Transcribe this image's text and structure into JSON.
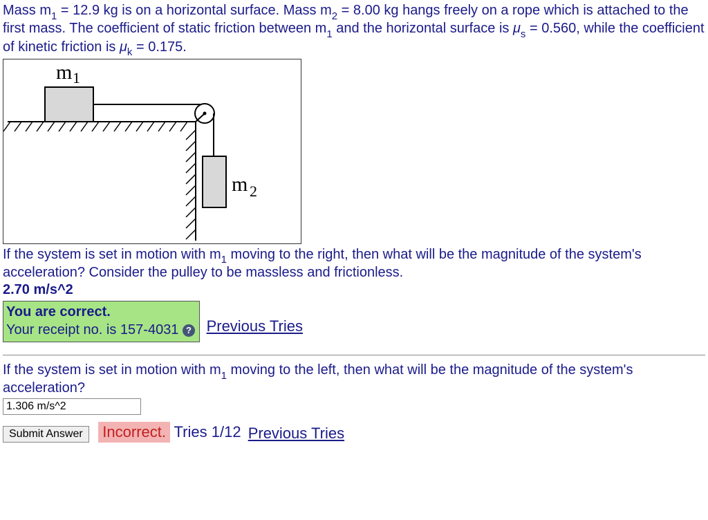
{
  "problem": {
    "text_html": "Mass m<span class='sub'>1</span> = 12.9 kg is on a horizontal surface. Mass m<span class='sub'>2</span> = 8.00 kg hangs freely on a rope which is attached to the first mass. The coefficient of static friction between m<span class='sub'>1</span> and the horizontal surface is <span class='ital'>μ</span><span class='sub'>s</span> = 0.560, while the coefficient of kinetic friction is <span class='ital'>μ</span><span class='sub'>k</span> = 0.175."
  },
  "diagram": {
    "m1_label": "m",
    "m1_sub": "1",
    "m2_label": "m",
    "m2_sub": "2",
    "box_fill": "#d8d8d8",
    "box_stroke": "#000000",
    "hatch_color": "#000000",
    "rope_color": "#000000",
    "pulley_stroke": "#000000",
    "pulley_fill": "#ffffff"
  },
  "q1": {
    "prompt_html": "If the system is set in motion with m<span class='sub'>1</span> moving to the right, then what will be the magnitude of the system's acceleration? Consider the pulley to be massless and frictionless.",
    "answer": "2.70 m/s^2",
    "feedback_line1": "You are correct.",
    "feedback_line2": "Your receipt no. is 157-4031",
    "previous_tries": "Previous Tries",
    "feedback_bg": "#a6e485"
  },
  "q2": {
    "prompt_html": "If the system is set in motion with m<span class='sub'>1</span> moving to the left, then what will be the magnitude of the system's acceleration?",
    "input_value": "1.306 m/s^2",
    "submit_label": "Submit Answer",
    "incorrect_label": "Incorrect.",
    "tries_text": "Tries 1/12",
    "previous_tries": "Previous Tries",
    "incorrect_bg": "#f4b3b3",
    "incorrect_color": "#c02020"
  }
}
